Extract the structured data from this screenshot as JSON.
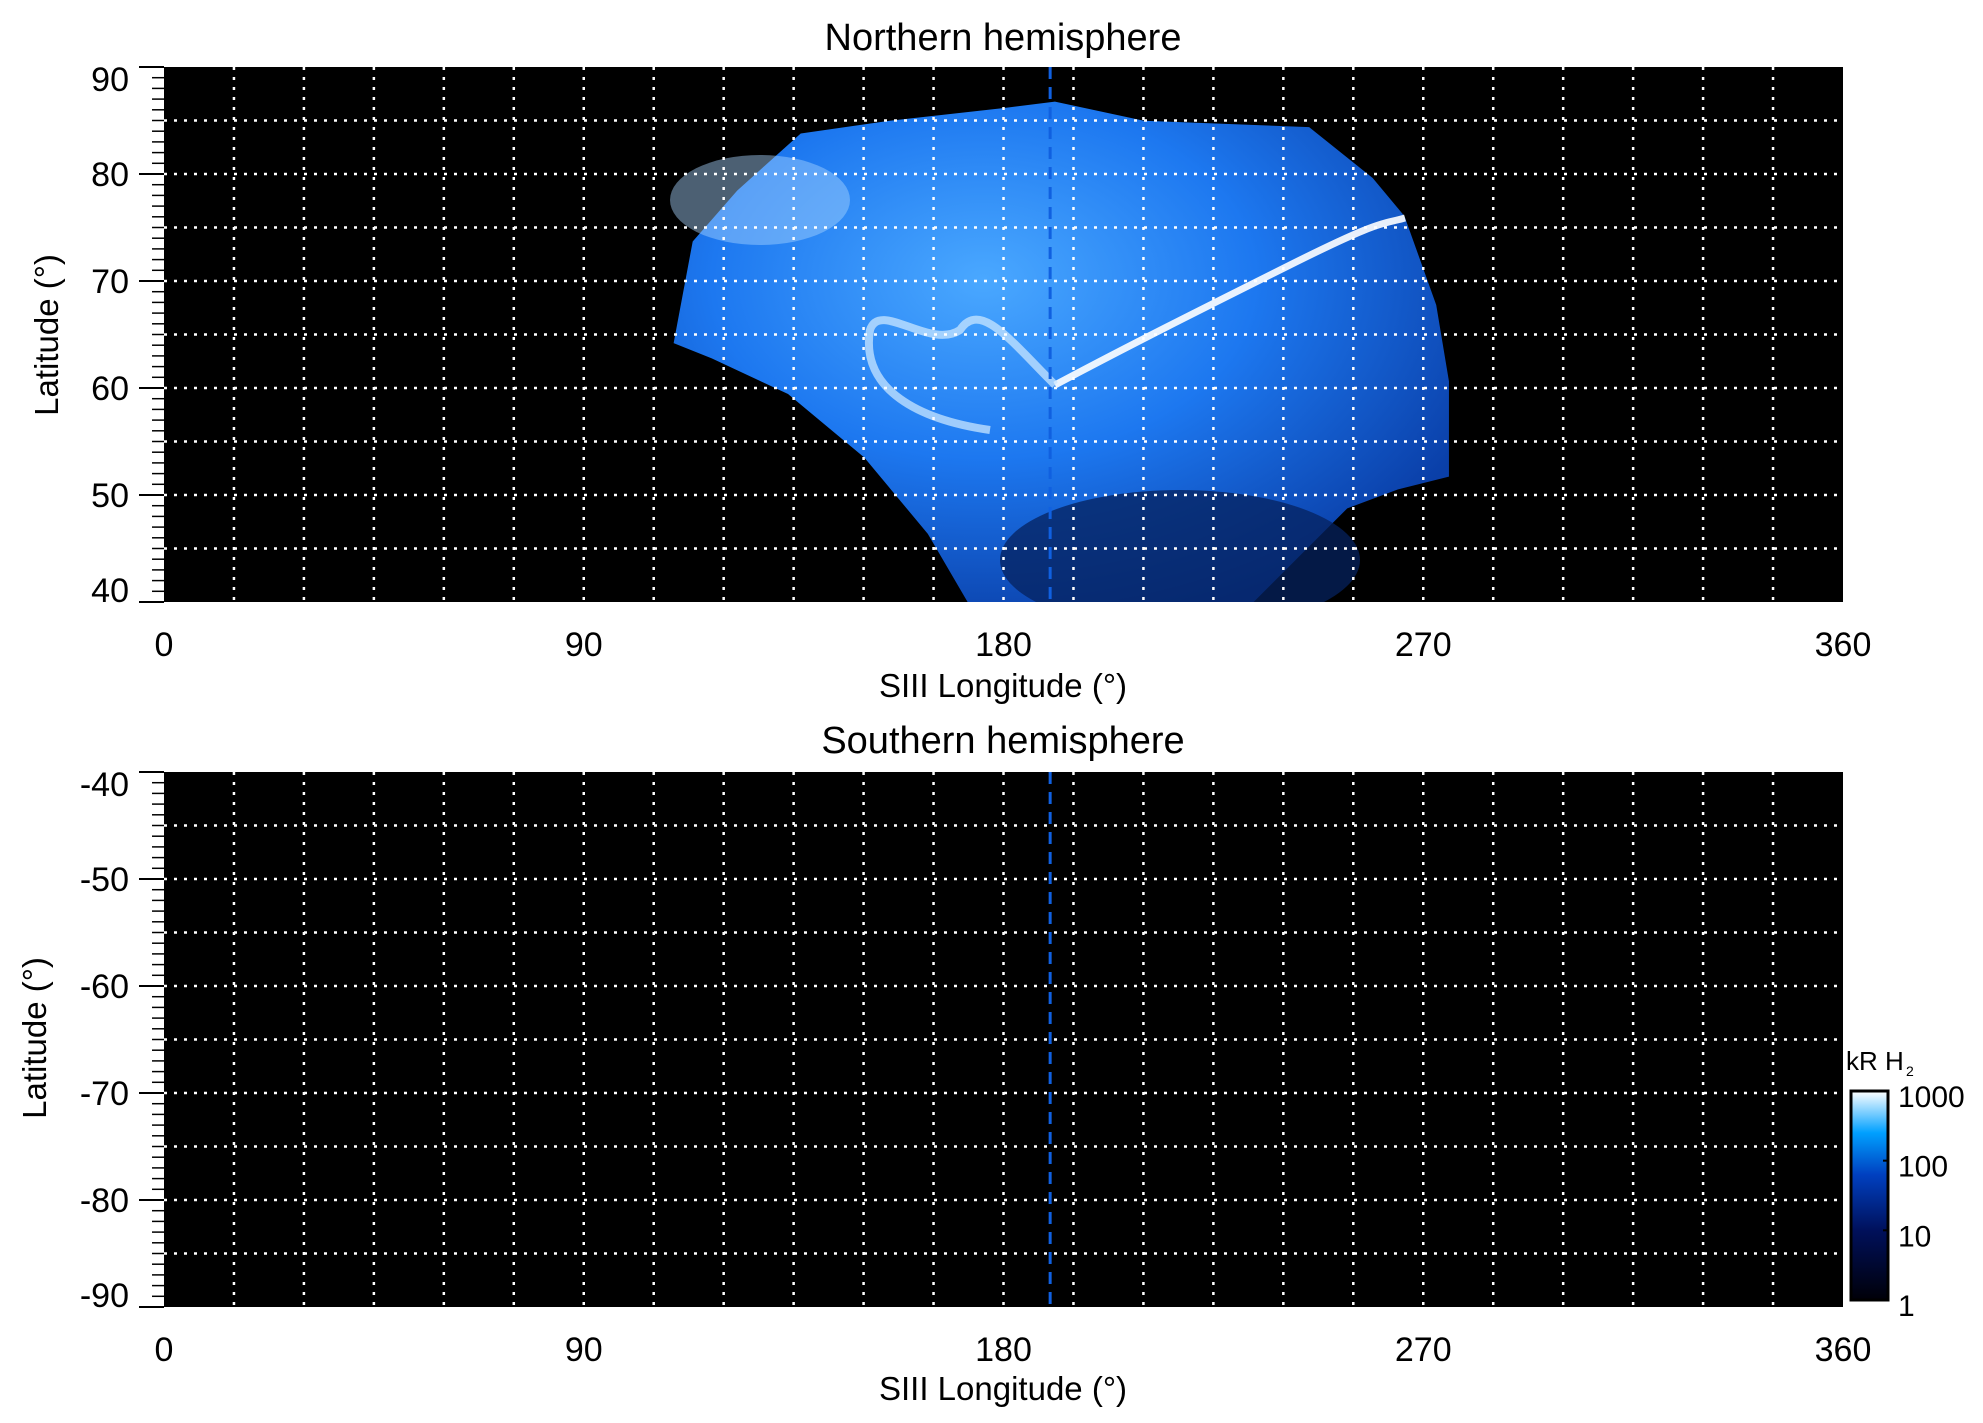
{
  "chart_data": [
    {
      "type": "heatmap",
      "title": "Northern hemisphere",
      "xlabel": "SIII Longitude (°)",
      "ylabel": "Latitude (°)",
      "xlim": [
        0,
        360
      ],
      "ylim": [
        40,
        90
      ],
      "xticks": [
        "0",
        "90",
        "180",
        "270",
        "360"
      ],
      "yticks": [
        "40",
        "50",
        "60",
        "70",
        "80",
        "90"
      ],
      "grid": true,
      "grid_spacing": {
        "longitude": 15,
        "latitude": 5
      },
      "reference_line_longitude": 190,
      "description_of_emission": "aurora emission spanning ~110-275° longitude, ~40-87° latitude, bright main arc from ~195°,60° to ~265°,76°",
      "background": "#000000"
    },
    {
      "type": "heatmap",
      "title": "Southern hemisphere",
      "xlabel": "SIII Longitude (°)",
      "ylabel": "Latitude (°)",
      "xlim": [
        0,
        360
      ],
      "ylim": [
        -90,
        -40
      ],
      "xticks": [
        "0",
        "90",
        "180",
        "270",
        "360"
      ],
      "yticks": [
        "-40",
        "-50",
        "-60",
        "-70",
        "-80",
        "-90"
      ],
      "grid": true,
      "grid_spacing": {
        "longitude": 15,
        "latitude": 5
      },
      "reference_line_longitude": 190,
      "background": "#000000"
    }
  ],
  "colorbar": {
    "label": "kR H",
    "label_subscript": "2",
    "scale": "log",
    "range": [
      1,
      1000
    ],
    "ticks": [
      "1000",
      "100",
      "10",
      "1"
    ],
    "colors": [
      "#000008",
      "#00105a",
      "#0040c0",
      "#00a0ff",
      "#ffffff"
    ]
  },
  "colors": {
    "grid": "#ffffff",
    "reference_line": "#1060e0"
  }
}
